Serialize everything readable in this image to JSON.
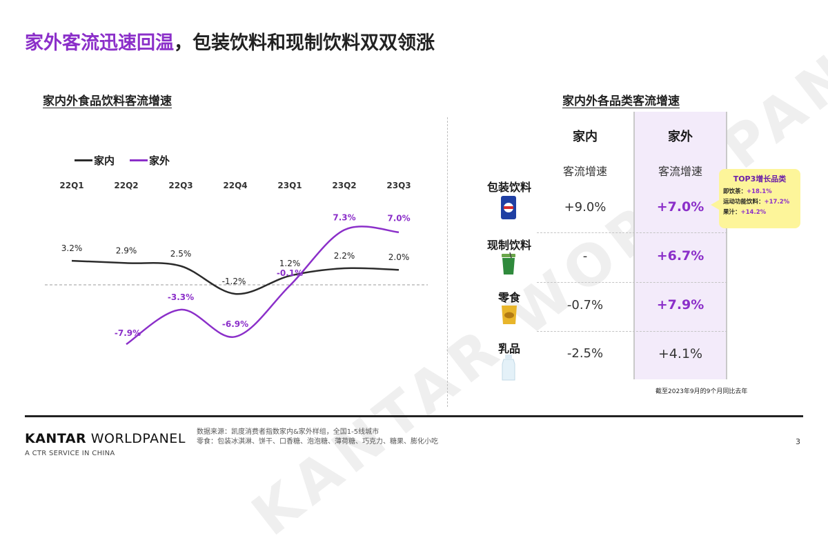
{
  "title": {
    "accent": "家外客流迅速回温",
    "rest": "，包装饮料和现制饮料双双领涨"
  },
  "chart_title": "家内外食品饮料客流增速",
  "table_title": "家内外各品类客流增速",
  "chart_data": {
    "type": "line",
    "x": [
      "22Q1",
      "22Q2",
      "22Q3",
      "22Q4",
      "23Q1",
      "23Q2",
      "23Q3"
    ],
    "series": [
      {
        "name": "家内",
        "values": [
          3.2,
          2.9,
          2.5,
          -1.2,
          1.2,
          2.2,
          2.0
        ],
        "labels": [
          "3.2%",
          "2.9%",
          "2.5%",
          "-1.2%",
          "1.2%",
          "2.2%",
          "2.0%"
        ],
        "color": "#2b2b2b"
      },
      {
        "name": "家外",
        "values": [
          null,
          -7.9,
          -3.3,
          -6.9,
          -0.1,
          7.3,
          7.0
        ],
        "labels": [
          "",
          "-7.9%",
          "-3.3%",
          "-6.9%",
          "-0.1%",
          "7.3%",
          "7.0%"
        ],
        "color": "#8b2fc9"
      }
    ],
    "baseline": 0,
    "ylim": [
      -9,
      8
    ]
  },
  "table": {
    "columns": [
      {
        "head": "家内",
        "sub": "客流增速"
      },
      {
        "head": "家外",
        "sub": "客流增速"
      }
    ],
    "rows": [
      {
        "label": "包装饮料",
        "icon": "packaged-drink-can-icon",
        "in": "+9.0%",
        "out": "+7.0%",
        "out_highlight": true
      },
      {
        "label": "现制饮料",
        "icon": "fresh-drink-cup-icon",
        "in": "-",
        "out": "+6.7%",
        "out_highlight": true
      },
      {
        "label": "零食",
        "icon": "snack-bag-icon",
        "in": "-0.7%",
        "out": "+7.9%",
        "out_highlight": true
      },
      {
        "label": "乳品",
        "icon": "milk-bottle-icon",
        "in": "-2.5%",
        "out": "+4.1%",
        "out_highlight": false
      }
    ]
  },
  "callout": {
    "title": "TOP3增长品类",
    "items": [
      {
        "name": "即饮茶：",
        "value": "+18.1%"
      },
      {
        "name": "运动功能饮料：",
        "value": "+17.2%"
      },
      {
        "name": "果汁：",
        "value": "+14.2%"
      }
    ]
  },
  "note": "截至2023年9月的9个月同比去年",
  "watermark": "KANTAR WORLDPANEL",
  "footer": {
    "brand_bold": "KANTAR",
    "brand_rest": " WORLDPANEL",
    "brand_sub": "A CTR SERVICE IN CHINA",
    "source_line1": "数据来源：凯度消费者指数家内&家外样组，全国1-5线城市",
    "source_line2": "零食：包装冰淇淋、饼干、口香糖、泡泡糖、薄荷糖、巧克力、糖果、膨化小吃",
    "page_number": "3"
  },
  "colors": {
    "accent": "#8b2fc9",
    "highlight_bg": "#f3ebfa",
    "callout_bg": "#fdf59a"
  }
}
